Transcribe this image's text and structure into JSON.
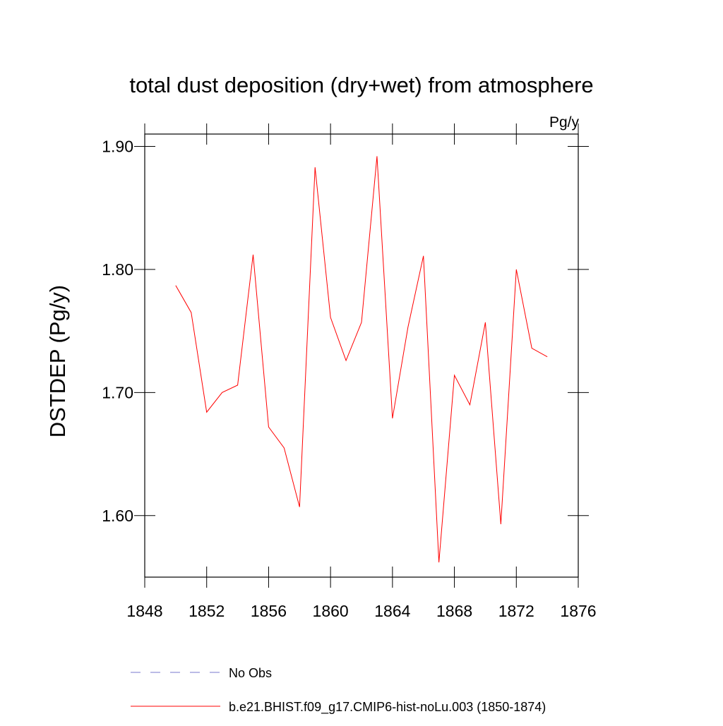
{
  "chart_data": {
    "type": "line",
    "title": "total dust deposition (dry+wet) from atmosphere",
    "units_label": "Pg/y",
    "y_label": "DSTDEP  (Pg/y)",
    "x": [
      1850,
      1851,
      1852,
      1853,
      1854,
      1855,
      1856,
      1857,
      1858,
      1859,
      1860,
      1861,
      1862,
      1863,
      1864,
      1865,
      1866,
      1867,
      1868,
      1869,
      1870,
      1871,
      1872,
      1873,
      1874
    ],
    "series": [
      {
        "name": "No Obs",
        "color": "#7777cc",
        "dash": true,
        "values": [
          null,
          null,
          null,
          null,
          null,
          null,
          null,
          null,
          null,
          null,
          null,
          null,
          null,
          null,
          null,
          null,
          null,
          null,
          null,
          null,
          null,
          null,
          null,
          null,
          null
        ]
      },
      {
        "name": "b.e21.BHIST.f09_g17.CMIP6-hist-noLu.003 (1850-1874)",
        "color": "#ff0000",
        "dash": false,
        "values": [
          1.787,
          1.765,
          1.684,
          1.7,
          1.706,
          1.812,
          1.672,
          1.655,
          1.607,
          1.883,
          1.761,
          1.726,
          1.757,
          1.892,
          1.679,
          1.753,
          1.811,
          1.562,
          1.714,
          1.69,
          1.757,
          1.593,
          1.8,
          1.736,
          1.729
        ]
      }
    ],
    "xlim": [
      1848,
      1876
    ],
    "xticks": [
      1848,
      1852,
      1856,
      1860,
      1864,
      1868,
      1872,
      1876
    ],
    "ylim": [
      1.55,
      1.91
    ],
    "yticks": [
      {
        "value": 1.6,
        "label": "1.60"
      },
      {
        "value": 1.7,
        "label": "1.70"
      },
      {
        "value": 1.8,
        "label": "1.80"
      },
      {
        "value": 1.9,
        "label": "1.90"
      }
    ]
  }
}
